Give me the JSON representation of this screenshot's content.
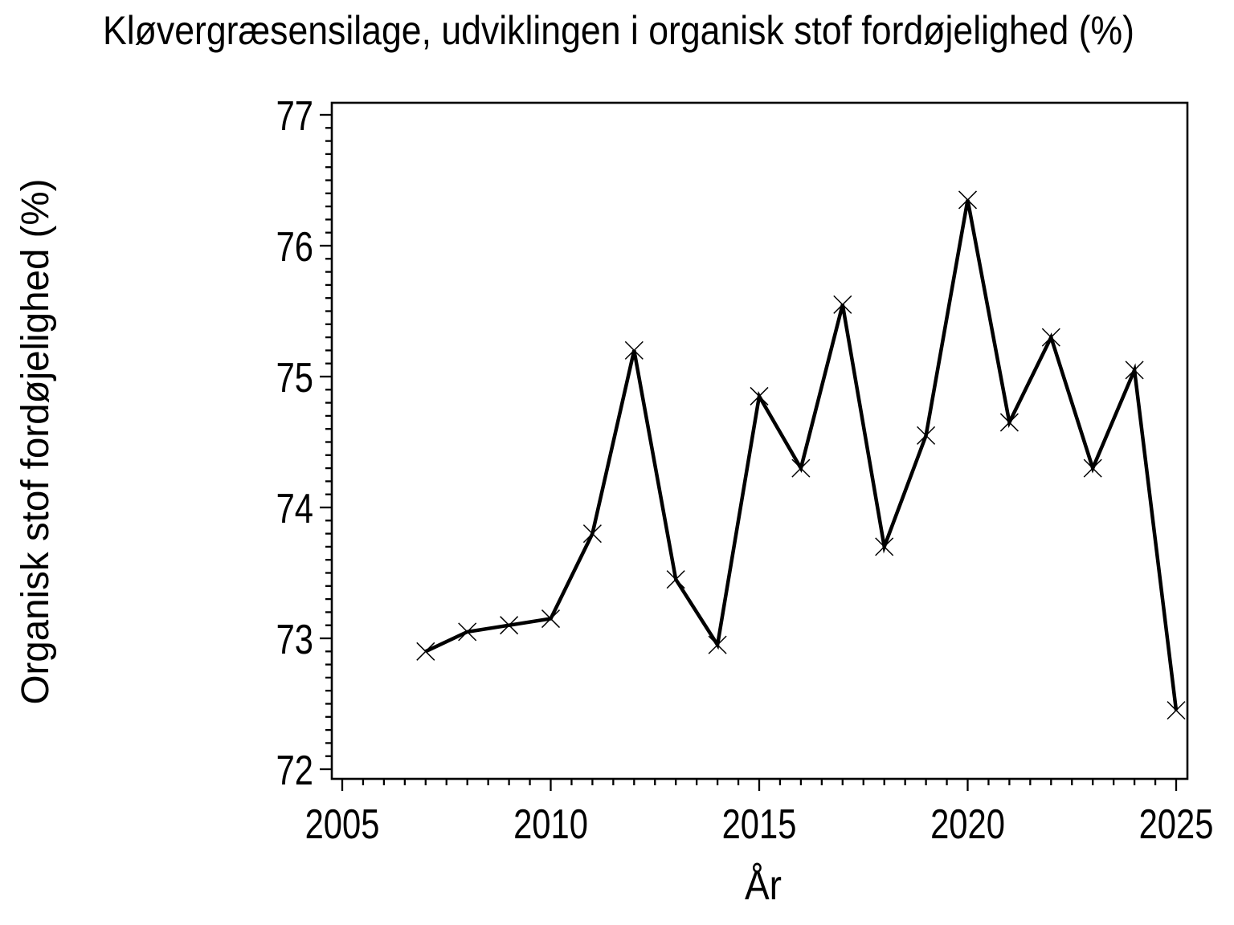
{
  "chart_data": {
    "type": "line",
    "title": "Kløvergræsensilage, udviklingen i organisk stof fordøjelighed (%)",
    "xlabel": "År",
    "ylabel": "Organisk stof fordøjelighed (%)",
    "x": [
      2007,
      2008,
      2009,
      2010,
      2011,
      2012,
      2013,
      2014,
      2015,
      2016,
      2017,
      2018,
      2019,
      2020,
      2021,
      2022,
      2023,
      2024,
      2025
    ],
    "values": [
      72.9,
      73.05,
      73.1,
      73.15,
      73.8,
      75.2,
      73.45,
      72.95,
      74.85,
      74.3,
      75.55,
      73.7,
      74.55,
      76.35,
      74.65,
      75.3,
      74.3,
      75.05,
      72.45
    ],
    "series_name": "Organisk stof fordøjelighed",
    "xlim": [
      2004.75,
      2025.27
    ],
    "ylim": [
      71.93,
      77.09
    ],
    "x_major_ticks": [
      2005,
      2010,
      2015,
      2020,
      2025
    ],
    "x_minor_step": 0.5,
    "y_major_ticks": [
      72,
      73,
      74,
      75,
      76,
      77
    ],
    "y_minor_step": 0.1,
    "marker": "x",
    "line_color": "#000000",
    "background_color": "#ffffff",
    "grid": false,
    "legend": "none"
  }
}
